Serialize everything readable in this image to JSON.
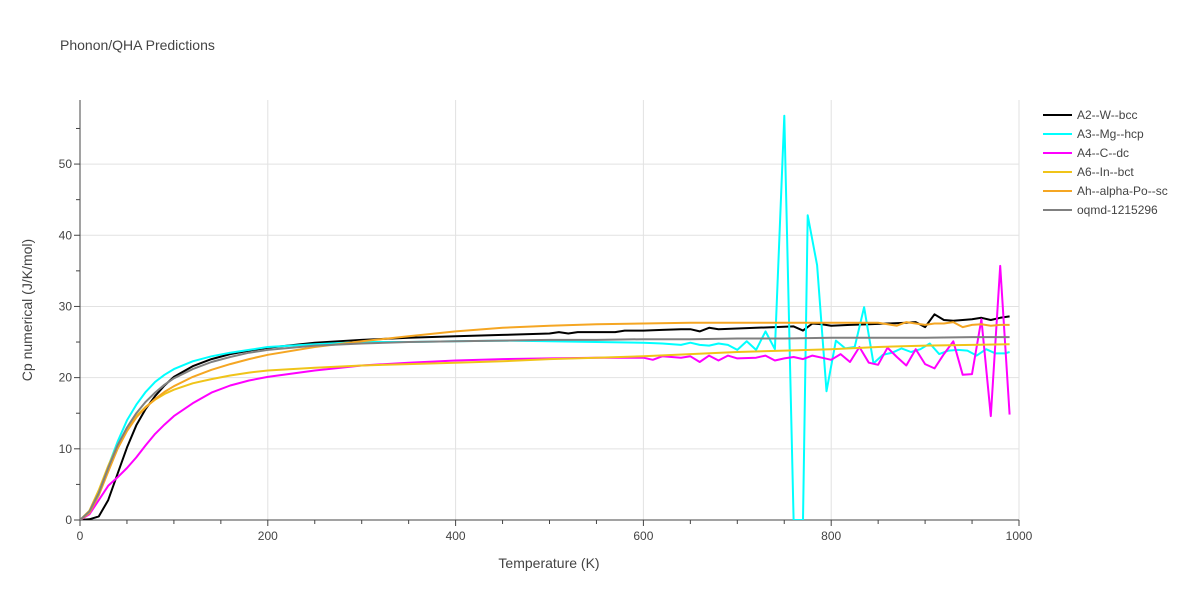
{
  "chart_data": {
    "type": "line",
    "title": "Phonon/QHA Predictions",
    "xlabel": "Temperature (K)",
    "ylabel": "Cp numerical (J/K/mol)",
    "xlim": [
      0,
      1000
    ],
    "ylim": [
      0,
      59
    ],
    "xticks": [
      0,
      200,
      400,
      600,
      800,
      1000
    ],
    "yticks": [
      0,
      10,
      20,
      30,
      40,
      50
    ],
    "grid": true,
    "legend_position": "right",
    "series": [
      {
        "name": "A2--W--bcc",
        "color": "#000000",
        "points": [
          [
            0,
            0
          ],
          [
            10,
            0.1
          ],
          [
            20,
            0.5
          ],
          [
            30,
            2.8
          ],
          [
            40,
            6.5
          ],
          [
            50,
            10.2
          ],
          [
            60,
            13.3
          ],
          [
            70,
            15.6
          ],
          [
            80,
            17.4
          ],
          [
            90,
            18.9
          ],
          [
            100,
            20.1
          ],
          [
            120,
            21.6
          ],
          [
            140,
            22.6
          ],
          [
            160,
            23.3
          ],
          [
            180,
            23.8
          ],
          [
            200,
            24.2
          ],
          [
            250,
            24.9
          ],
          [
            300,
            25.3
          ],
          [
            350,
            25.6
          ],
          [
            400,
            25.8
          ],
          [
            450,
            26.0
          ],
          [
            500,
            26.2
          ],
          [
            510,
            26.4
          ],
          [
            520,
            26.2
          ],
          [
            530,
            26.4
          ],
          [
            550,
            26.4
          ],
          [
            570,
            26.4
          ],
          [
            580,
            26.6
          ],
          [
            600,
            26.6
          ],
          [
            620,
            26.7
          ],
          [
            640,
            26.8
          ],
          [
            650,
            26.8
          ],
          [
            660,
            26.5
          ],
          [
            670,
            27.0
          ],
          [
            680,
            26.8
          ],
          [
            700,
            26.9
          ],
          [
            720,
            27.0
          ],
          [
            740,
            27.1
          ],
          [
            760,
            27.2
          ],
          [
            770,
            26.6
          ],
          [
            780,
            27.6
          ],
          [
            790,
            27.5
          ],
          [
            800,
            27.3
          ],
          [
            820,
            27.4
          ],
          [
            840,
            27.5
          ],
          [
            860,
            27.6
          ],
          [
            880,
            27.7
          ],
          [
            890,
            27.8
          ],
          [
            900,
            27.1
          ],
          [
            910,
            28.9
          ],
          [
            920,
            28.1
          ],
          [
            930,
            28.0
          ],
          [
            940,
            28.1
          ],
          [
            950,
            28.2
          ],
          [
            960,
            28.4
          ],
          [
            970,
            28.1
          ],
          [
            980,
            28.4
          ],
          [
            990,
            28.6
          ]
        ]
      },
      {
        "name": "A3--Mg--hcp",
        "color": "#00ffff",
        "points": [
          [
            0,
            0
          ],
          [
            10,
            1.0
          ],
          [
            20,
            3.5
          ],
          [
            30,
            7.5
          ],
          [
            40,
            11.0
          ],
          [
            50,
            14.0
          ],
          [
            60,
            16.2
          ],
          [
            70,
            18.0
          ],
          [
            80,
            19.4
          ],
          [
            90,
            20.4
          ],
          [
            100,
            21.2
          ],
          [
            120,
            22.3
          ],
          [
            140,
            23.0
          ],
          [
            160,
            23.5
          ],
          [
            180,
            23.9
          ],
          [
            200,
            24.3
          ],
          [
            250,
            24.7
          ],
          [
            300,
            25.0
          ],
          [
            350,
            25.0
          ],
          [
            400,
            25.1
          ],
          [
            450,
            25.2
          ],
          [
            500,
            25.1
          ],
          [
            550,
            25.0
          ],
          [
            600,
            24.9
          ],
          [
            620,
            24.8
          ],
          [
            640,
            24.6
          ],
          [
            650,
            24.9
          ],
          [
            660,
            24.6
          ],
          [
            670,
            24.5
          ],
          [
            680,
            24.8
          ],
          [
            690,
            24.6
          ],
          [
            700,
            23.9
          ],
          [
            710,
            25.1
          ],
          [
            720,
            23.9
          ],
          [
            730,
            26.5
          ],
          [
            740,
            24.0
          ],
          [
            750,
            56.8
          ],
          [
            760,
            0.0
          ],
          [
            770,
            0.0
          ],
          [
            775,
            42.8
          ],
          [
            785,
            35.8
          ],
          [
            795,
            18.1
          ],
          [
            805,
            25.2
          ],
          [
            815,
            24.1
          ],
          [
            825,
            24.3
          ],
          [
            835,
            29.9
          ],
          [
            845,
            22.0
          ],
          [
            855,
            23.2
          ],
          [
            865,
            23.5
          ],
          [
            875,
            24.1
          ],
          [
            885,
            23.6
          ],
          [
            895,
            24.0
          ],
          [
            905,
            24.8
          ],
          [
            915,
            23.3
          ],
          [
            925,
            23.8
          ],
          [
            935,
            23.9
          ],
          [
            945,
            23.8
          ],
          [
            955,
            23.1
          ],
          [
            965,
            24.0
          ],
          [
            975,
            23.4
          ],
          [
            985,
            23.4
          ],
          [
            990,
            23.6
          ]
        ]
      },
      {
        "name": "A4--C--dc",
        "color": "#ff00ff",
        "points": [
          [
            0,
            0
          ],
          [
            10,
            0.8
          ],
          [
            20,
            2.8
          ],
          [
            30,
            4.8
          ],
          [
            40,
            6.0
          ],
          [
            50,
            7.3
          ],
          [
            60,
            8.8
          ],
          [
            70,
            10.5
          ],
          [
            80,
            12.1
          ],
          [
            90,
            13.4
          ],
          [
            100,
            14.6
          ],
          [
            120,
            16.4
          ],
          [
            140,
            17.9
          ],
          [
            160,
            18.9
          ],
          [
            180,
            19.6
          ],
          [
            200,
            20.1
          ],
          [
            250,
            21.0
          ],
          [
            300,
            21.7
          ],
          [
            350,
            22.1
          ],
          [
            400,
            22.4
          ],
          [
            450,
            22.6
          ],
          [
            500,
            22.7
          ],
          [
            550,
            22.8
          ],
          [
            580,
            22.8
          ],
          [
            600,
            22.8
          ],
          [
            610,
            22.5
          ],
          [
            620,
            23.0
          ],
          [
            640,
            22.8
          ],
          [
            650,
            23.0
          ],
          [
            660,
            22.2
          ],
          [
            670,
            23.1
          ],
          [
            680,
            22.4
          ],
          [
            690,
            23.1
          ],
          [
            700,
            22.7
          ],
          [
            720,
            22.8
          ],
          [
            730,
            23.1
          ],
          [
            740,
            22.4
          ],
          [
            750,
            22.7
          ],
          [
            760,
            22.9
          ],
          [
            770,
            22.6
          ],
          [
            780,
            23.1
          ],
          [
            790,
            22.8
          ],
          [
            800,
            22.5
          ],
          [
            810,
            23.3
          ],
          [
            820,
            22.2
          ],
          [
            830,
            24.3
          ],
          [
            840,
            22.1
          ],
          [
            850,
            21.8
          ],
          [
            860,
            24.2
          ],
          [
            870,
            22.9
          ],
          [
            880,
            21.7
          ],
          [
            890,
            24.0
          ],
          [
            900,
            21.9
          ],
          [
            910,
            21.3
          ],
          [
            920,
            23.3
          ],
          [
            930,
            25.1
          ],
          [
            940,
            20.4
          ],
          [
            950,
            20.5
          ],
          [
            960,
            28.2
          ],
          [
            970,
            14.6
          ],
          [
            980,
            35.7
          ],
          [
            990,
            14.8
          ]
        ]
      },
      {
        "name": "A6--In--bct",
        "color": "#f0c419",
        "points": [
          [
            0,
            0
          ],
          [
            10,
            1.3
          ],
          [
            20,
            4.2
          ],
          [
            30,
            7.6
          ],
          [
            40,
            10.5
          ],
          [
            50,
            12.8
          ],
          [
            60,
            14.6
          ],
          [
            70,
            15.9
          ],
          [
            80,
            16.9
          ],
          [
            90,
            17.7
          ],
          [
            100,
            18.3
          ],
          [
            120,
            19.2
          ],
          [
            140,
            19.8
          ],
          [
            160,
            20.3
          ],
          [
            180,
            20.7
          ],
          [
            200,
            21.0
          ],
          [
            250,
            21.4
          ],
          [
            300,
            21.7
          ],
          [
            350,
            21.9
          ],
          [
            400,
            22.1
          ],
          [
            450,
            22.3
          ],
          [
            500,
            22.6
          ],
          [
            550,
            22.8
          ],
          [
            600,
            23.0
          ],
          [
            650,
            23.3
          ],
          [
            700,
            23.6
          ],
          [
            750,
            23.8
          ],
          [
            800,
            24.0
          ],
          [
            850,
            24.3
          ],
          [
            900,
            24.5
          ],
          [
            950,
            24.6
          ],
          [
            990,
            24.7
          ]
        ]
      },
      {
        "name": "Ah--alpha-Po--sc",
        "color": "#f5a623",
        "points": [
          [
            0,
            0
          ],
          [
            10,
            1.0
          ],
          [
            20,
            3.5
          ],
          [
            30,
            6.8
          ],
          [
            40,
            10.0
          ],
          [
            50,
            12.5
          ],
          [
            60,
            14.4
          ],
          [
            70,
            15.8
          ],
          [
            80,
            17.0
          ],
          [
            90,
            18.0
          ],
          [
            100,
            18.8
          ],
          [
            120,
            20.1
          ],
          [
            140,
            21.1
          ],
          [
            160,
            21.9
          ],
          [
            180,
            22.6
          ],
          [
            200,
            23.2
          ],
          [
            250,
            24.3
          ],
          [
            300,
            25.1
          ],
          [
            350,
            25.8
          ],
          [
            400,
            26.5
          ],
          [
            450,
            27.0
          ],
          [
            500,
            27.3
          ],
          [
            550,
            27.5
          ],
          [
            600,
            27.6
          ],
          [
            650,
            27.7
          ],
          [
            700,
            27.7
          ],
          [
            750,
            27.7
          ],
          [
            800,
            27.7
          ],
          [
            850,
            27.7
          ],
          [
            870,
            27.3
          ],
          [
            880,
            27.8
          ],
          [
            890,
            27.6
          ],
          [
            900,
            27.4
          ],
          [
            910,
            27.6
          ],
          [
            920,
            27.6
          ],
          [
            930,
            27.8
          ],
          [
            940,
            27.1
          ],
          [
            950,
            27.4
          ],
          [
            960,
            27.5
          ],
          [
            970,
            27.3
          ],
          [
            980,
            27.4
          ],
          [
            990,
            27.4
          ]
        ]
      },
      {
        "name": "oqmd-1215296",
        "color": "#808080",
        "points": [
          [
            0,
            0
          ],
          [
            10,
            1.2
          ],
          [
            20,
            3.8
          ],
          [
            30,
            7.3
          ],
          [
            40,
            10.5
          ],
          [
            50,
            13.0
          ],
          [
            60,
            15.0
          ],
          [
            70,
            16.6
          ],
          [
            80,
            17.9
          ],
          [
            90,
            19.0
          ],
          [
            100,
            19.9
          ],
          [
            120,
            21.2
          ],
          [
            140,
            22.2
          ],
          [
            160,
            22.9
          ],
          [
            180,
            23.5
          ],
          [
            200,
            23.9
          ],
          [
            250,
            24.5
          ],
          [
            300,
            24.8
          ],
          [
            350,
            25.0
          ],
          [
            400,
            25.1
          ],
          [
            450,
            25.2
          ],
          [
            500,
            25.3
          ],
          [
            550,
            25.3
          ],
          [
            600,
            25.4
          ],
          [
            650,
            25.4
          ],
          [
            700,
            25.5
          ],
          [
            750,
            25.5
          ],
          [
            800,
            25.6
          ],
          [
            850,
            25.6
          ],
          [
            900,
            25.6
          ],
          [
            950,
            25.7
          ],
          [
            990,
            25.7
          ]
        ]
      }
    ]
  }
}
